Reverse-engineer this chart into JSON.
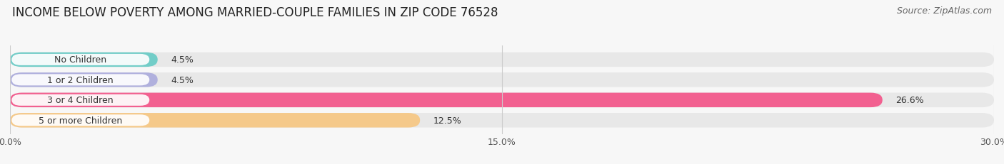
{
  "title": "INCOME BELOW POVERTY AMONG MARRIED-COUPLE FAMILIES IN ZIP CODE 76528",
  "source": "Source: ZipAtlas.com",
  "categories": [
    "No Children",
    "1 or 2 Children",
    "3 or 4 Children",
    "5 or more Children"
  ],
  "values": [
    4.5,
    4.5,
    26.6,
    12.5
  ],
  "bar_colors": [
    "#72cdc8",
    "#b0b0dd",
    "#f26090",
    "#f5c98a"
  ],
  "xlim": [
    0,
    30.0
  ],
  "xticks": [
    0.0,
    15.0,
    30.0
  ],
  "xticklabels": [
    "0.0%",
    "15.0%",
    "30.0%"
  ],
  "background_color": "#f7f7f7",
  "bar_background_color": "#e8e8e8",
  "title_fontsize": 12,
  "label_fontsize": 9,
  "value_fontsize": 9,
  "source_fontsize": 9
}
